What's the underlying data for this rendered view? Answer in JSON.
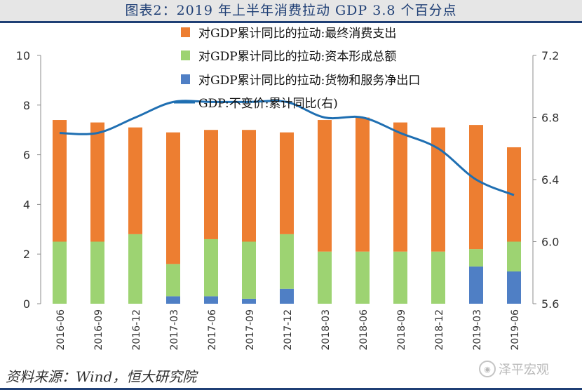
{
  "header": {
    "title": "图表2：2019 年上半年消费拉动 GDP 3.8 个百分点"
  },
  "footer": {
    "source": "资料来源：Wind，恒大研究院",
    "watermark": "泽平宏观"
  },
  "chart_data": {
    "type": "bar",
    "categories": [
      "2016-06",
      "2016-09",
      "2016-12",
      "2017-03",
      "2017-06",
      "2017-09",
      "2017-12",
      "2018-03",
      "2018-06",
      "2018-09",
      "2018-12",
      "2019-03",
      "2019-06"
    ],
    "stacked": true,
    "series": [
      {
        "name": "对GDP累计同比的拉动:货物和服务净出口",
        "kind": "bar",
        "axis": "left",
        "color": "#4f7fc5",
        "values": [
          -0.8,
          -0.7,
          -0.4,
          0.3,
          0.3,
          0.2,
          0.6,
          -0.6,
          -0.7,
          -0.7,
          -0.6,
          1.5,
          1.3
        ]
      },
      {
        "name": "对GDP累计同比的拉动:资本形成总额",
        "kind": "bar",
        "axis": "left",
        "color": "#9dd372",
        "values": [
          2.5,
          2.5,
          2.8,
          1.3,
          2.3,
          2.3,
          2.2,
          2.1,
          2.1,
          2.1,
          2.1,
          0.7,
          1.2
        ]
      },
      {
        "name": "对GDP累计同比的拉动:最终消费支出",
        "kind": "bar",
        "axis": "left",
        "color": "#ed7e31",
        "values": [
          4.9,
          4.8,
          4.3,
          5.3,
          4.4,
          4.5,
          4.1,
          5.3,
          5.4,
          5.2,
          5.0,
          5.0,
          3.8
        ]
      },
      {
        "name": "GDP:不变价:累计同比(右)",
        "kind": "line",
        "axis": "right",
        "color": "#1f6fb2",
        "values": [
          6.7,
          6.7,
          6.8,
          6.9,
          6.9,
          6.9,
          6.9,
          6.8,
          6.8,
          6.7,
          6.6,
          6.4,
          6.3
        ]
      }
    ],
    "y_left": {
      "min": 0,
      "max": 10,
      "ticks": [
        0,
        2,
        4,
        6,
        8,
        10
      ]
    },
    "y_right": {
      "min": 5.6,
      "max": 7.2,
      "ticks": [
        "5.6",
        "6.0",
        "6.4",
        "6.8",
        "7.2"
      ]
    },
    "legend_order": [
      2,
      1,
      0,
      3
    ],
    "legend_position": "top-center",
    "grid": false
  }
}
